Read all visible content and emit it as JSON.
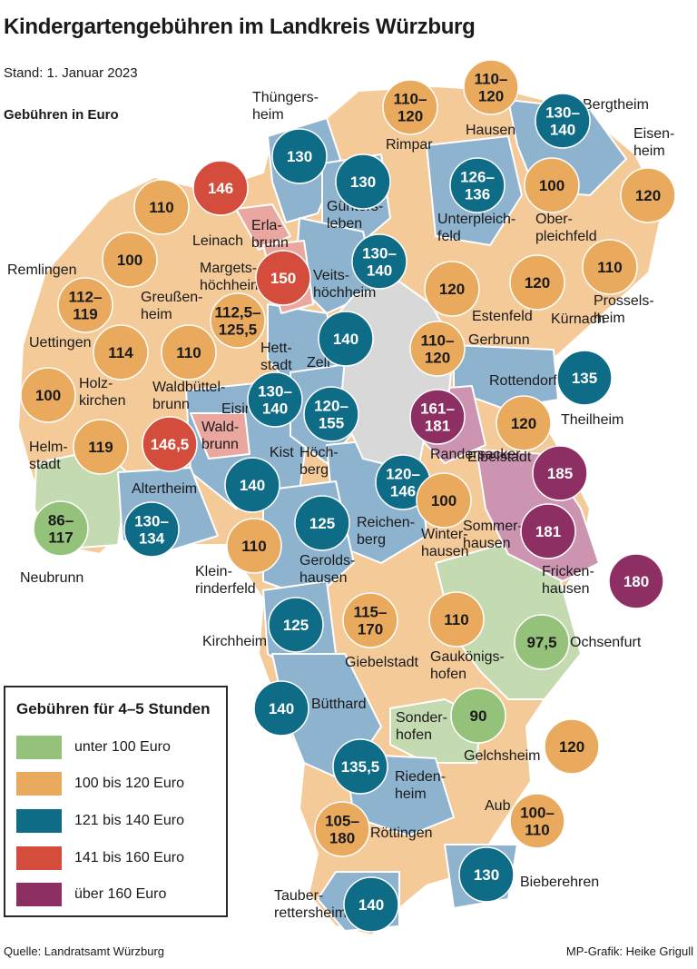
{
  "header": {
    "title": "Kindergartengebühren im Landkreis Würzburg",
    "stand": "Stand: 1. Januar 2023",
    "unit": "Gebühren in Euro"
  },
  "footer": {
    "source": "Quelle: Landratsamt Würzburg",
    "credit": "MP-Grafik: Heike Grigull"
  },
  "legend": {
    "title": "Gebühren für 4–5 Stunden",
    "items": [
      {
        "label": "unter 100 Euro",
        "color": "#95c27a"
      },
      {
        "label": "100 bis 120 Euro",
        "color": "#eaaa5e"
      },
      {
        "label": "121 bis 140 Euro",
        "color": "#0f6c87"
      },
      {
        "label": "141 bis 160 Euro",
        "color": "#d44d3c"
      },
      {
        "label": "über 160 Euro",
        "color": "#8e2f63"
      }
    ]
  },
  "colors": {
    "green_area": "#c4dab0",
    "orange_area": "#f4ca98",
    "blue_area": "#8db3cf",
    "red_area": "#e9a79f",
    "purple_area": "#cc94b0",
    "city": "#d8d8d8",
    "border": "#ffffff",
    "dark_text": "#1a1a1a"
  },
  "bubbles": [
    {
      "label": "130",
      "cls": 2
    },
    {
      "label": "110–\n120",
      "cls": 1
    },
    {
      "label": "110–\n120",
      "cls": 1
    },
    {
      "label": "130–\n140",
      "cls": 2
    },
    {
      "label": "146",
      "cls": 3
    },
    {
      "label": "110",
      "cls": 1
    },
    {
      "label": "130",
      "cls": 2
    },
    {
      "label": "126–\n136",
      "cls": 2
    },
    {
      "label": "100",
      "cls": 1
    },
    {
      "label": "120",
      "cls": 1
    },
    {
      "label": "100",
      "cls": 1
    },
    {
      "label": "150",
      "cls": 3
    },
    {
      "label": "130–\n140",
      "cls": 2
    },
    {
      "label": "112–\n119",
      "cls": 1
    },
    {
      "label": "120",
      "cls": 1
    },
    {
      "label": "120",
      "cls": 1
    },
    {
      "label": "110",
      "cls": 1
    },
    {
      "label": "114",
      "cls": 1
    },
    {
      "label": "110",
      "cls": 1
    },
    {
      "label": "112,5–\n125,5",
      "cls": 1
    },
    {
      "label": "140",
      "cls": 2
    },
    {
      "label": "110–\n120",
      "cls": 1
    },
    {
      "label": "100",
      "cls": 1
    },
    {
      "label": "130–\n140",
      "cls": 2
    },
    {
      "label": "120–\n155",
      "cls": 2
    },
    {
      "label": "135",
      "cls": 2
    },
    {
      "label": "161–\n181",
      "cls": 4
    },
    {
      "label": "120",
      "cls": 1
    },
    {
      "label": "119",
      "cls": 1
    },
    {
      "label": "146,5",
      "cls": 3
    },
    {
      "label": "140",
      "cls": 2
    },
    {
      "label": "120–\n146",
      "cls": 2
    },
    {
      "label": "185",
      "cls": 4
    },
    {
      "label": "100",
      "cls": 1
    },
    {
      "label": "86–\n117",
      "cls": 0
    },
    {
      "label": "130–\n134",
      "cls": 2
    },
    {
      "label": "125",
      "cls": 2
    },
    {
      "label": "181",
      "cls": 4
    },
    {
      "label": "110",
      "cls": 1
    },
    {
      "label": "180",
      "cls": 4
    },
    {
      "label": "125",
      "cls": 2
    },
    {
      "label": "115–\n170",
      "cls": 1
    },
    {
      "label": "110",
      "cls": 1
    },
    {
      "label": "97,5",
      "cls": 0
    },
    {
      "label": "140",
      "cls": 2
    },
    {
      "label": "90",
      "cls": 0
    },
    {
      "label": "120",
      "cls": 1
    },
    {
      "label": "135,5",
      "cls": 2
    },
    {
      "label": "105–\n180",
      "cls": 1
    },
    {
      "label": "100–\n110",
      "cls": 1
    },
    {
      "label": "130",
      "cls": 2
    },
    {
      "label": "140",
      "cls": 2
    }
  ],
  "places": [
    "Thüngers-\nheim",
    "Rimpar",
    "Hausen",
    "Bergtheim",
    "Eisen-\nheim",
    "Günters-\nleben",
    "Unterpleich-\nfeld",
    "Ober-\npleichfeld",
    "Erla-\nbrunn",
    "Leinach",
    "Margets-\nhöchheim",
    "Veits-\nhöchheim",
    "Remlingen",
    "Greußen-\nheim",
    "Estenfeld",
    "Kürnach",
    "Prossels-\nheim",
    "Uettingen",
    "Holz-\nkirchen",
    "Hett-\nstadt",
    "Zell",
    "Gerbrunn",
    "Rottendorf",
    "Waldbüttel-\nbrunn",
    "Wald-\nbrunn",
    "Theilheim",
    "Eisingen",
    "Randersacker",
    "Helm-\nstadt",
    "Kist",
    "Höch-\nberg",
    "Eibelstadt",
    "Altertheim",
    "Reichen-\nberg",
    "Winter-\nhausen",
    "Sommer-\nhausen",
    "Gerolds-\nhausen",
    "Fricken-\nhausen",
    "Neubrunn",
    "Klein-\nrinderfeld",
    "Ochsenfurt",
    "Kirchheim",
    "Giebelstadt",
    "Gaukönigs-\nhofen",
    "Bütthard",
    "Sonder-\nhofen",
    "Gelchsheim",
    "Rieden-\nheim",
    "Aub",
    "Röttingen",
    "Bieberehren",
    "Tauber-\nrettersheim"
  ]
}
